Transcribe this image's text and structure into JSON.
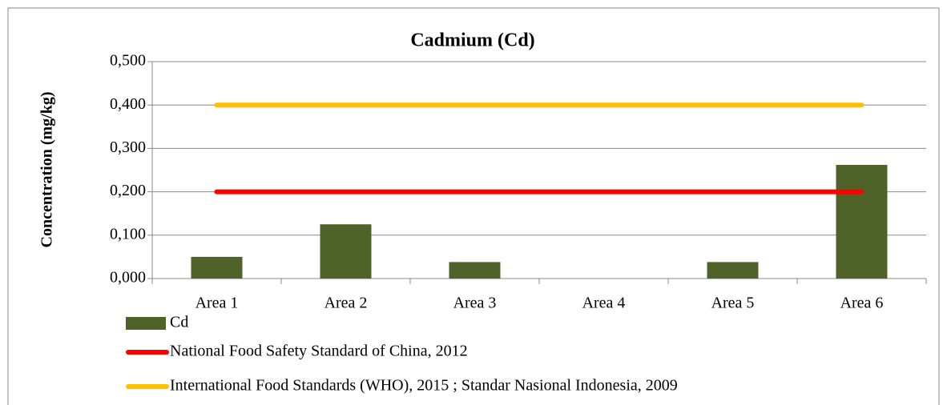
{
  "chart_data": {
    "type": "bar",
    "title": "Cadmium (Cd)",
    "y_label": "Concentration (mg/kg)",
    "categories": [
      "Area 1",
      "Area 2",
      "Area 3",
      "Area 4",
      "Area 5",
      "Area 6"
    ],
    "series": [
      {
        "name": "Cd",
        "type": "bar",
        "color": "#4f6228",
        "values": [
          0.05,
          0.125,
          0.038,
          0,
          0.038,
          0.262
        ]
      },
      {
        "name": "National Food Safety Standard of China, 2012",
        "type": "line",
        "color": "#ff0000",
        "values": [
          0.2,
          0.2,
          0.2,
          0.2,
          0.2,
          0.2
        ]
      },
      {
        "name": "International Food Standards (WHO), 2015 ; Standar Nasional Indonesia, 2009",
        "type": "line",
        "color": "#ffc000",
        "values": [
          0.4,
          0.4,
          0.4,
          0.4,
          0.4,
          0.4
        ]
      }
    ],
    "ylim": [
      0,
      0.5
    ],
    "yticks": [
      {
        "value": 0,
        "label": "0,000"
      },
      {
        "value": 0.1,
        "label": "0,100"
      },
      {
        "value": 0.2,
        "label": "0,200"
      },
      {
        "value": 0.3,
        "label": "0,300"
      },
      {
        "value": 0.4,
        "label": "0,400"
      },
      {
        "value": 0.5,
        "label": "0,500"
      }
    ],
    "grid": true,
    "legend": "bottom-left"
  }
}
